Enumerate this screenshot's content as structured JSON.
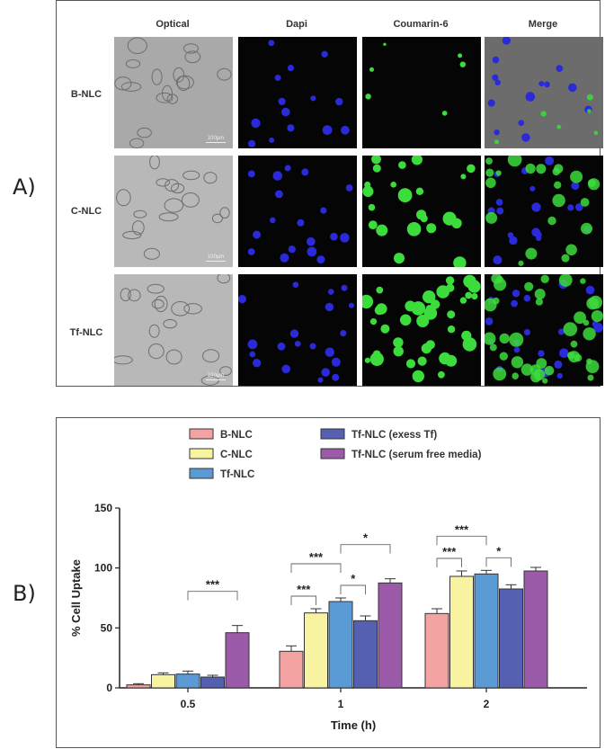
{
  "panel_a": {
    "letter": "A)",
    "columns": [
      "Optical",
      "Dapi",
      "Coumarin-6",
      "Merge"
    ],
    "rows": [
      "B-NLC",
      "C-NLC",
      "Tf-NLC"
    ],
    "scale_bar": "100μm"
  },
  "panel_b": {
    "letter": "B)"
  },
  "colors": {
    "B-NLC": "#f4a3a3",
    "C-NLC": "#f8f3a0",
    "Tf-NLC": "#5b9bd5",
    "Tf-NLC (exess Tf)": "#5560b0",
    "Tf-NLC (serum free media)": "#9b5ba8",
    "dapi": "#2a2ad8",
    "coumarin": "#3ddc3d"
  },
  "chart_data": {
    "type": "bar",
    "categories": [
      "0.5",
      "1",
      "2"
    ],
    "series": [
      {
        "name": "B-NLC",
        "values": [
          2.5,
          30.5,
          62
        ],
        "errors": [
          1,
          4.5,
          4
        ]
      },
      {
        "name": "C-NLC",
        "values": [
          11,
          62.5,
          93
        ],
        "errors": [
          1.5,
          3.5,
          4.5
        ]
      },
      {
        "name": "Tf-NLC",
        "values": [
          11.5,
          72,
          95
        ],
        "errors": [
          2.5,
          3,
          3
        ]
      },
      {
        "name": "Tf-NLC (exess Tf)",
        "values": [
          9,
          56,
          82.5
        ],
        "errors": [
          1.5,
          4,
          3.5
        ]
      },
      {
        "name": "Tf-NLC (serum free media)",
        "values": [
          46,
          87.5,
          97.5
        ],
        "errors": [
          6,
          3.5,
          3
        ]
      }
    ],
    "xlabel": "Time (h)",
    "ylabel": "% Cell Uptake",
    "ylim": [
      0,
      150
    ],
    "yticks": [
      0,
      50,
      100,
      150
    ],
    "legend_position": "top",
    "significance": [
      {
        "group": 0,
        "from": 2,
        "to": 4,
        "label": "***"
      },
      {
        "group": 1,
        "from": 0,
        "to": 1,
        "label": "***"
      },
      {
        "group": 1,
        "from": 0,
        "to": 2,
        "label": "***"
      },
      {
        "group": 1,
        "from": 2,
        "to": 3,
        "label": "*"
      },
      {
        "group": 1,
        "from": 2,
        "to": 4,
        "label": "*"
      },
      {
        "group": 2,
        "from": 0,
        "to": 1,
        "label": "***"
      },
      {
        "group": 2,
        "from": 0,
        "to": 2,
        "label": "***"
      },
      {
        "group": 2,
        "from": 2,
        "to": 3,
        "label": "*"
      }
    ]
  }
}
